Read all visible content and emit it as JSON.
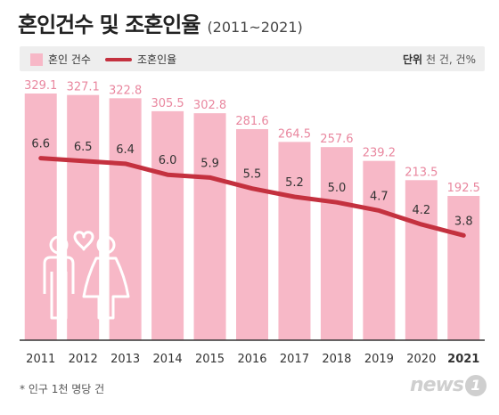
{
  "header": {
    "title": "혼인건수 및 조혼인율",
    "subtitle": "(2011~2021)"
  },
  "legend": {
    "bar_label": "혼인 건수",
    "line_label": "조혼인율",
    "unit_label": "단위",
    "unit_value": "천 건, 건%"
  },
  "footnote": "* 인구 1천 명당 건",
  "logo": {
    "text": "news",
    "badge": "1"
  },
  "colors": {
    "bar": "#f7b8c7",
    "bar_label": "#e9879f",
    "line": "#c4313f",
    "line_label": "#333333",
    "axis": "#333333",
    "icon": "#ffffff"
  },
  "chart_data": {
    "type": "bar",
    "categories": [
      "2011",
      "2012",
      "2013",
      "2014",
      "2015",
      "2016",
      "2017",
      "2018",
      "2019",
      "2020",
      "2021"
    ],
    "series": [
      {
        "name": "혼인 건수",
        "type": "bar",
        "values": [
          329.1,
          327.1,
          322.8,
          305.5,
          302.8,
          281.6,
          264.5,
          257.6,
          239.2,
          213.5,
          192.5
        ]
      },
      {
        "name": "조혼인율",
        "type": "line",
        "values": [
          6.6,
          6.5,
          6.4,
          6.0,
          5.9,
          5.5,
          5.2,
          5.0,
          4.7,
          4.2,
          3.8
        ]
      }
    ],
    "ylim_bar": [
      0,
      329.1
    ],
    "ylim_line": [
      0,
      10.4
    ]
  }
}
